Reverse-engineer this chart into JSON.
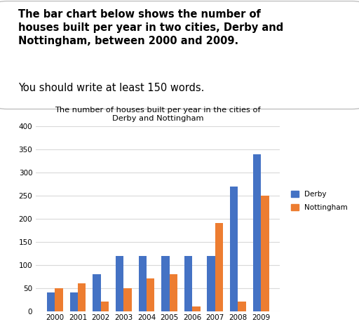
{
  "title_line1": "The number of houses built per year in the cities of",
  "title_line2": "Derby and Nottingham",
  "years": [
    2000,
    2001,
    2002,
    2003,
    2004,
    2005,
    2006,
    2007,
    2008,
    2009
  ],
  "derby": [
    40,
    40,
    80,
    120,
    120,
    120,
    120,
    120,
    270,
    340
  ],
  "nottingham": [
    50,
    60,
    20,
    50,
    70,
    80,
    10,
    190,
    20,
    250
  ],
  "derby_color": "#4472C4",
  "nottingham_color": "#ED7D31",
  "ylim": [
    0,
    400
  ],
  "yticks": [
    0,
    50,
    100,
    150,
    200,
    250,
    300,
    350,
    400
  ],
  "legend_derby": "Derby",
  "legend_nottingham": "Nottingham",
  "header_text1": "The bar chart below shows the number of\nhouses built per year in two cities, Derby and\nNottingham, between 2000 and 2009.",
  "header_text2": "You should write at least 150 words.",
  "bg_color": "#ffffff",
  "text_color": "#000000",
  "grid_color": "#d9d9d9",
  "bar_width": 0.35
}
